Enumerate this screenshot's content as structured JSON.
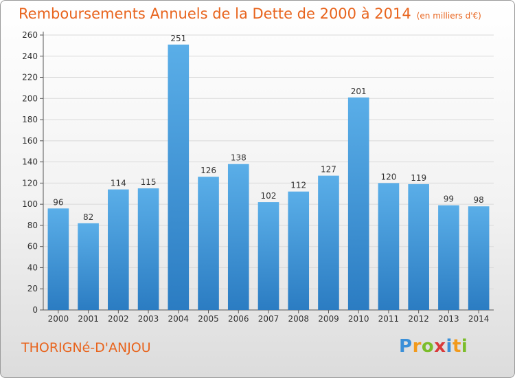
{
  "title": "Remboursements Annuels de la Dette de 2000 à 2014",
  "unit_note": "(en milliers d'€)",
  "place": "THORIGNé-D'ANJOU",
  "brand": "Proxiti",
  "colors": {
    "title": "#e8641d",
    "bar_top": "#5aaee8",
    "bar_bottom": "#2b7cc2",
    "grid": "#d9d9d9"
  },
  "chart_data": {
    "type": "bar",
    "title": "Remboursements Annuels de la Dette de 2000 à 2014",
    "categories": [
      "2000",
      "2001",
      "2002",
      "2003",
      "2004",
      "2005",
      "2006",
      "2007",
      "2008",
      "2009",
      "2010",
      "2011",
      "2012",
      "2013",
      "2014"
    ],
    "values": [
      96,
      82,
      114,
      115,
      251,
      126,
      138,
      102,
      112,
      127,
      201,
      120,
      119,
      99,
      98
    ],
    "ylim": [
      0,
      260
    ],
    "yticks": [
      0,
      20,
      40,
      60,
      80,
      100,
      120,
      140,
      160,
      180,
      200,
      220,
      240,
      260
    ],
    "xlabel": "",
    "ylabel": "",
    "grid": true
  }
}
